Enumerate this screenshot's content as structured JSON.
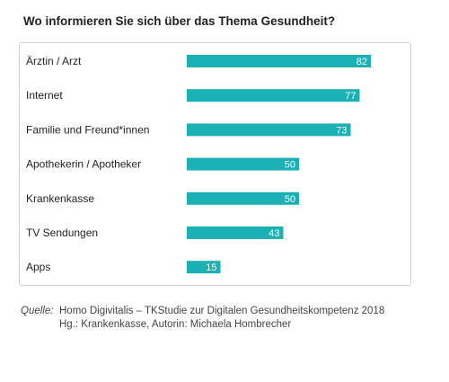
{
  "colors": {
    "bar": "#1bb1b4",
    "value_text": "#ffffff",
    "card_border": "#cfcfcf"
  },
  "chart_data": {
    "type": "bar",
    "orientation": "horizontal",
    "title": "Wo informieren Sie sich über das Thema Gesundheit?",
    "categories": [
      "Ärztin / Arzt",
      "Internet",
      "Familie und Freund*innen",
      "Apothekerin / Apotheker",
      "Krankenkasse",
      "TV Sendungen",
      "Apps"
    ],
    "values": [
      82,
      77,
      73,
      50,
      50,
      43,
      15
    ],
    "xlim": [
      0,
      100
    ],
    "grid": false,
    "legend": "none",
    "data_labels": "inside-end"
  },
  "source": {
    "label": "Quelle:",
    "line1": "Homo Digivitalis – TKStudie zur Digitalen Gesundheitskompetenz 2018",
    "line2": "Hg.: Krankenkasse, Autorin: Michaela Hombrecher"
  }
}
